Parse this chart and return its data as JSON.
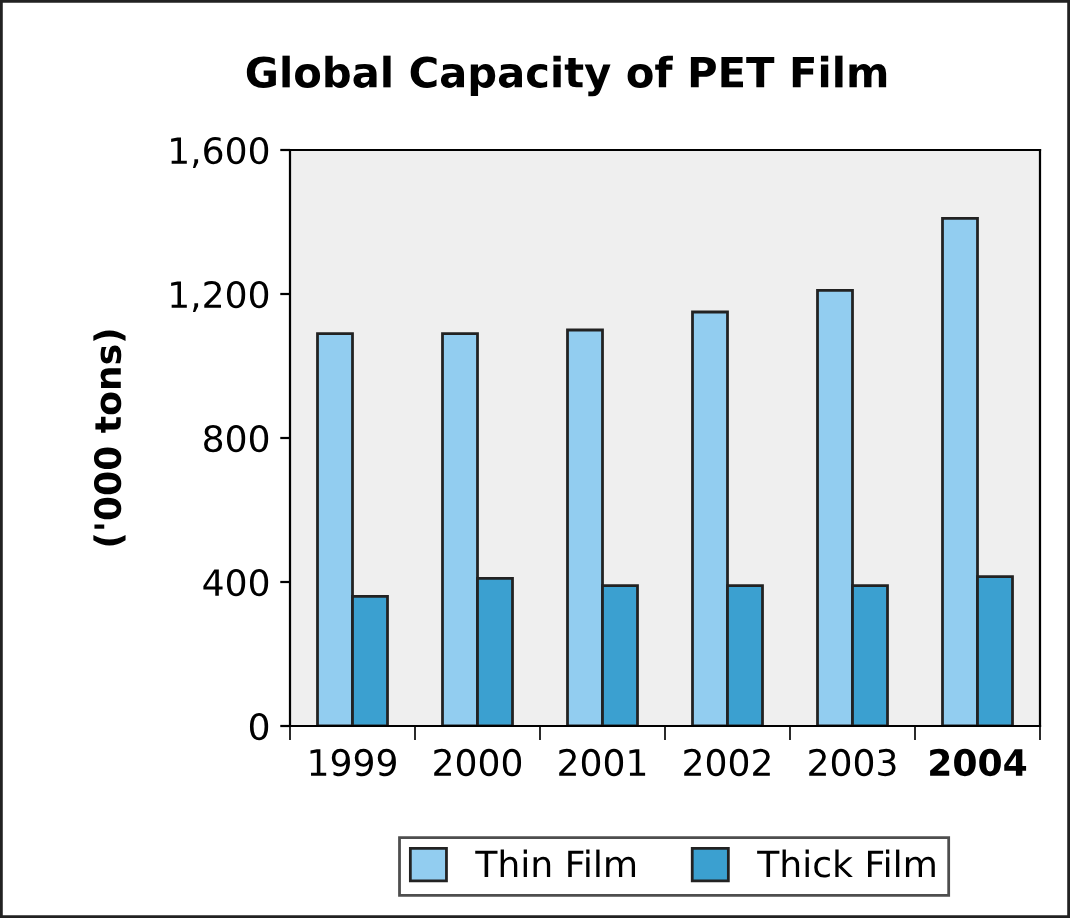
{
  "chart_data": {
    "type": "bar",
    "title": "Global Capacity of PET Film",
    "ylabel": "('000 tons)",
    "categories": [
      "1999",
      "2000",
      "2001",
      "2002",
      "2003",
      "2004"
    ],
    "series": [
      {
        "name": "Thin Film",
        "color": "#92cdf0",
        "values": [
          1090,
          1090,
          1100,
          1150,
          1210,
          1410
        ]
      },
      {
        "name": "Thick Film",
        "color": "#3ba0d0",
        "values": [
          360,
          410,
          390,
          390,
          390,
          415
        ]
      }
    ],
    "ylim": [
      0,
      1600
    ],
    "yticks": [
      {
        "value": 0,
        "label": "0"
      },
      {
        "value": 400,
        "label": "400"
      },
      {
        "value": 800,
        "label": "800"
      },
      {
        "value": 1200,
        "label": "1,200"
      },
      {
        "value": 1600,
        "label": "1,600"
      }
    ],
    "grid": false,
    "legend": "bottom"
  }
}
